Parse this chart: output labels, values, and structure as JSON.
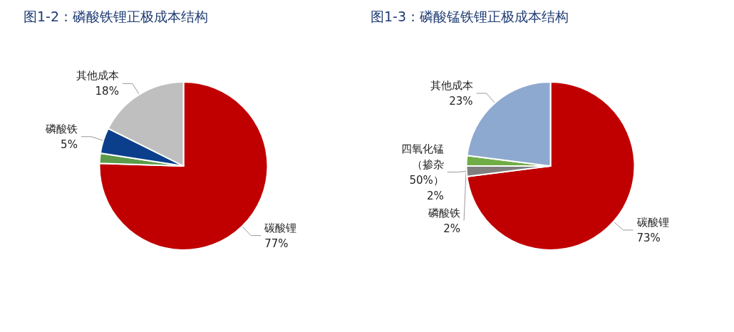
{
  "chart_data": [
    {
      "type": "pie",
      "title": "图1-2：磷酸铁锂正极成本结构",
      "categories": [
        "碳酸锂",
        null,
        "磷酸铁",
        "其他成本"
      ],
      "values": [
        77,
        2,
        5,
        18
      ],
      "value_labels": [
        "77%",
        null,
        "5%",
        "18%"
      ],
      "colors": [
        "#c00000",
        "#5b9b4a",
        "#0b3f8c",
        "#bfbfbf"
      ],
      "legend": false
    },
    {
      "type": "pie",
      "title": "图1-3：磷酸锰铁锂正极成本结构",
      "categories": [
        "碳酸锂",
        "四氧化锰（掺杂50%）",
        "磷酸铁",
        "其他成本"
      ],
      "values": [
        73,
        2,
        2,
        23
      ],
      "value_labels": [
        "73%",
        "2%",
        "2%",
        "23%"
      ],
      "colors": [
        "#c00000",
        "#7f7f7f",
        "#70ad47",
        "#8ea9cf"
      ],
      "legend": false
    }
  ]
}
